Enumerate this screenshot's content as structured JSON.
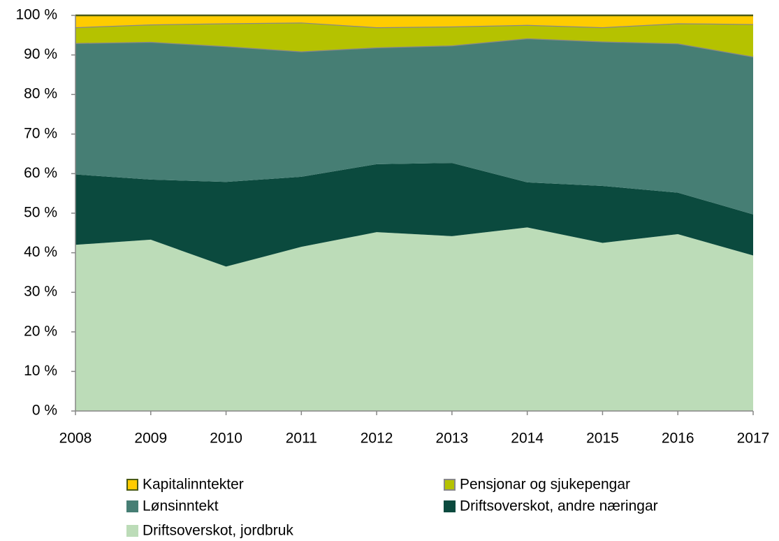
{
  "chart_data": {
    "type": "stacked_area",
    "categories": [
      "2008",
      "2009",
      "2010",
      "2011",
      "2012",
      "2013",
      "2014",
      "2015",
      "2016",
      "2017"
    ],
    "series": [
      {
        "name": "Driftsoverskot, jordbruk",
        "color": "#bcdcb8",
        "values": [
          42,
          43.3,
          36.5,
          41.5,
          45.2,
          44.2,
          46.4,
          42.5,
          44.7,
          39.3
        ]
      },
      {
        "name": "Driftsoverskot, andre næringar",
        "color": "#0b4a3e",
        "values": [
          17.8,
          15.2,
          21.4,
          17.7,
          17.2,
          18.5,
          11.4,
          14.4,
          10.5,
          10.4
        ]
      },
      {
        "name": "Lønsinntekt",
        "color": "#467e74",
        "values": [
          33.2,
          34.8,
          34.3,
          31.7,
          29.5,
          29.7,
          36.4,
          36.5,
          37.7,
          39.9
        ]
      },
      {
        "name": "Pensjonar og sjukepengar",
        "color": "#b5c200",
        "values": [
          4.0,
          4.4,
          5.8,
          7.3,
          5.1,
          4.8,
          3.4,
          3.6,
          5.1,
          8.2
        ]
      },
      {
        "name": "Kapitalinntekter",
        "color": "#ffcc00",
        "values": [
          3.0,
          2.3,
          2.0,
          1.8,
          3.0,
          2.8,
          2.4,
          3.0,
          2.0,
          2.2
        ]
      }
    ],
    "ylim": [
      0,
      100
    ],
    "yticks": [
      {
        "value": 0,
        "label": "0 %"
      },
      {
        "value": 10,
        "label": "10 %"
      },
      {
        "value": 20,
        "label": "20 %"
      },
      {
        "value": 30,
        "label": "30 %"
      },
      {
        "value": 40,
        "label": "40 %"
      },
      {
        "value": 50,
        "label": "50 %"
      },
      {
        "value": 60,
        "label": "60 %"
      },
      {
        "value": 70,
        "label": "70 %"
      },
      {
        "value": 80,
        "label": "80 %"
      },
      {
        "value": 90,
        "label": "90 %"
      },
      {
        "value": 100,
        "label": "100 %"
      }
    ]
  }
}
